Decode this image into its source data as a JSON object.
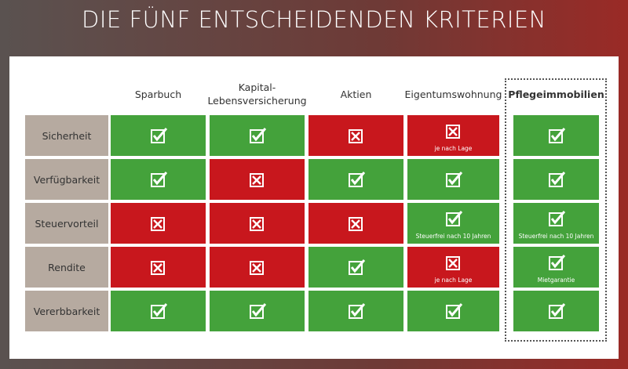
{
  "title": "DIE FÜNF ENTSCHEIDENDEN KRITERIEN",
  "colors": {
    "yes": "#44a23b",
    "no": "#c8171d"
  },
  "table": {
    "columns": [
      "Sparbuch",
      "Kapital-\nLebensversicherung",
      "Aktien",
      "Eigentumswohnung",
      "Pflegeimmobilien"
    ],
    "highlight_column": 4,
    "rows": [
      {
        "label": "Sicherheit",
        "cells": [
          {
            "status": "yes"
          },
          {
            "status": "yes"
          },
          {
            "status": "no"
          },
          {
            "status": "no",
            "note": "je nach Lage"
          },
          {
            "status": "yes"
          }
        ]
      },
      {
        "label": "Verfügbarkeit",
        "cells": [
          {
            "status": "yes"
          },
          {
            "status": "no"
          },
          {
            "status": "yes"
          },
          {
            "status": "yes"
          },
          {
            "status": "yes"
          }
        ]
      },
      {
        "label": "Steuervorteil",
        "cells": [
          {
            "status": "no"
          },
          {
            "status": "no"
          },
          {
            "status": "no"
          },
          {
            "status": "yes",
            "note": "Steuerfrei nach 10 Jahren"
          },
          {
            "status": "yes",
            "note": "Steuerfrei nach 10 Jahren"
          }
        ]
      },
      {
        "label": "Rendite",
        "cells": [
          {
            "status": "no"
          },
          {
            "status": "no"
          },
          {
            "status": "yes"
          },
          {
            "status": "no",
            "note": "je nach Lage"
          },
          {
            "status": "yes",
            "note": "Mietgarantie"
          }
        ]
      },
      {
        "label": "Vererbbarkeit",
        "cells": [
          {
            "status": "yes"
          },
          {
            "status": "yes"
          },
          {
            "status": "yes"
          },
          {
            "status": "yes"
          },
          {
            "status": "yes"
          }
        ]
      }
    ]
  }
}
